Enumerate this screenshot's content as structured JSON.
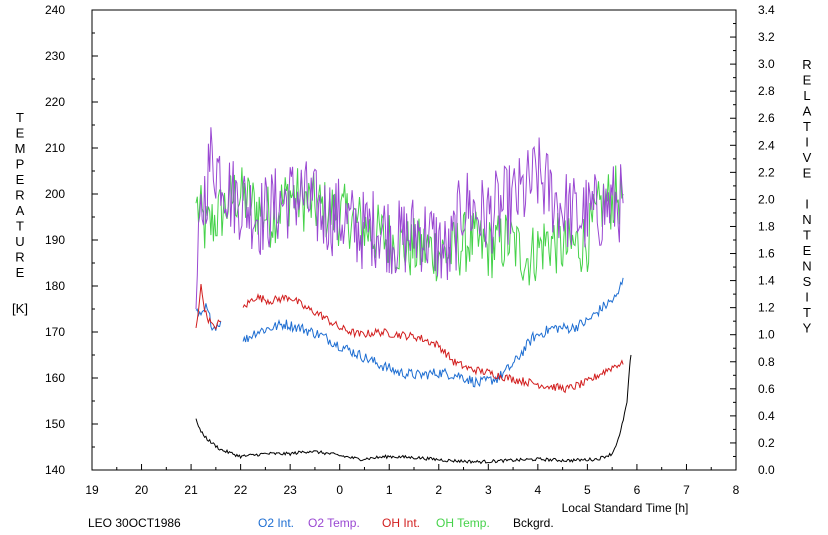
{
  "chart_data": {
    "type": "line",
    "title": "",
    "station_label": "LEO 30OCT1986",
    "xlabel": "Local Standard Time [h]",
    "ylabel_left": [
      "T",
      "E",
      "M",
      "P",
      "E",
      "R",
      "A",
      "T",
      "U",
      "R",
      "E"
    ],
    "ylabel_left_unit": "[K]",
    "ylabel_right": [
      "R",
      "E",
      "L",
      "A",
      "T",
      "I",
      "V",
      "E",
      "",
      "I",
      "N",
      "T",
      "E",
      "N",
      "S",
      "I",
      "T",
      "Y"
    ],
    "xlim": [
      19,
      32
    ],
    "x_tick_values": [
      19,
      20,
      21,
      22,
      23,
      24,
      25,
      26,
      27,
      28,
      29,
      30,
      31,
      32
    ],
    "x_tick_labels": [
      "19",
      "20",
      "21",
      "22",
      "23",
      "0",
      "1",
      "2",
      "3",
      "4",
      "5",
      "6",
      "7",
      "8"
    ],
    "ylim_left": [
      140,
      240
    ],
    "y_left_ticks": [
      "140",
      "150",
      "160",
      "170",
      "180",
      "190",
      "200",
      "210",
      "220",
      "230",
      "240"
    ],
    "ylim_right": [
      0,
      3.4
    ],
    "y_right_ticks": [
      "0.0",
      "0.2",
      "0.4",
      "0.6",
      "0.8",
      "1.0",
      "1.2",
      "1.4",
      "1.6",
      "1.8",
      "2.0",
      "2.2",
      "2.4",
      "2.6",
      "2.8",
      "3.0",
      "3.2",
      "3.4"
    ],
    "grid": false,
    "legend_position": "bottom",
    "series": [
      {
        "name": "O2 Int.",
        "axis": "right",
        "color": "#1e6ed2",
        "noise": 0.04,
        "points": [
          [
            21.1,
            1.18
          ],
          [
            21.2,
            1.12
          ],
          [
            21.3,
            1.2
          ],
          [
            21.45,
            1.05
          ],
          [
            21.6,
            1.1
          ],
          [
            null,
            null
          ],
          [
            22.05,
            0.95
          ],
          [
            22.3,
            1.02
          ],
          [
            22.6,
            1.05
          ],
          [
            22.9,
            1.08
          ],
          [
            23.2,
            1.05
          ],
          [
            23.6,
            1.0
          ],
          [
            24.0,
            0.92
          ],
          [
            24.4,
            0.85
          ],
          [
            24.8,
            0.78
          ],
          [
            25.2,
            0.72
          ],
          [
            25.6,
            0.7
          ],
          [
            26.0,
            0.72
          ],
          [
            26.4,
            0.7
          ],
          [
            26.8,
            0.64
          ],
          [
            27.2,
            0.68
          ],
          [
            27.5,
            0.78
          ],
          [
            27.9,
            0.98
          ],
          [
            28.3,
            1.05
          ],
          [
            28.7,
            1.05
          ],
          [
            29.0,
            1.1
          ],
          [
            29.3,
            1.2
          ],
          [
            29.6,
            1.28
          ],
          [
            29.72,
            1.42
          ]
        ]
      },
      {
        "name": "O2 Temp.",
        "axis": "left",
        "color": "#9a48d2",
        "noise": 9,
        "points": [
          [
            21.1,
            175
          ],
          [
            21.2,
            195
          ],
          [
            21.4,
            208
          ],
          [
            21.6,
            205
          ],
          [
            21.8,
            200
          ],
          [
            22.1,
            198
          ],
          [
            22.4,
            195
          ],
          [
            22.8,
            198
          ],
          [
            23.2,
            200
          ],
          [
            23.6,
            196
          ],
          [
            24.0,
            195
          ],
          [
            24.4,
            192
          ],
          [
            24.8,
            193
          ],
          [
            25.2,
            190
          ],
          [
            25.6,
            192
          ],
          [
            26.0,
            189
          ],
          [
            26.2,
            186
          ],
          [
            26.5,
            198
          ],
          [
            26.9,
            195
          ],
          [
            27.3,
            197
          ],
          [
            27.7,
            200
          ],
          [
            28.0,
            204
          ],
          [
            28.4,
            198
          ],
          [
            28.8,
            195
          ],
          [
            29.2,
            196
          ],
          [
            29.5,
            198
          ],
          [
            29.72,
            198
          ]
        ]
      },
      {
        "name": "OH Int.",
        "axis": "right",
        "color": "#d21e1e",
        "noise": 0.03,
        "points": [
          [
            21.1,
            1.05
          ],
          [
            21.2,
            1.35
          ],
          [
            21.3,
            1.15
          ],
          [
            21.45,
            1.05
          ],
          [
            21.6,
            1.1
          ],
          [
            null,
            null
          ],
          [
            22.05,
            1.2
          ],
          [
            22.3,
            1.28
          ],
          [
            22.6,
            1.25
          ],
          [
            23.0,
            1.28
          ],
          [
            23.3,
            1.2
          ],
          [
            23.6,
            1.15
          ],
          [
            24.0,
            1.05
          ],
          [
            24.4,
            1.0
          ],
          [
            24.8,
            1.02
          ],
          [
            25.2,
            1.0
          ],
          [
            25.6,
            0.98
          ],
          [
            26.0,
            0.92
          ],
          [
            26.3,
            0.8
          ],
          [
            26.6,
            0.75
          ],
          [
            27.0,
            0.72
          ],
          [
            27.4,
            0.68
          ],
          [
            27.8,
            0.65
          ],
          [
            28.2,
            0.62
          ],
          [
            28.6,
            0.6
          ],
          [
            29.0,
            0.65
          ],
          [
            29.3,
            0.72
          ],
          [
            29.6,
            0.78
          ],
          [
            29.72,
            0.78
          ]
        ]
      },
      {
        "name": "OH Temp.",
        "axis": "left",
        "color": "#46d24a",
        "noise": 7,
        "points": [
          [
            21.1,
            198
          ],
          [
            21.3,
            192
          ],
          [
            21.6,
            196
          ],
          [
            21.9,
            200
          ],
          [
            22.2,
            198
          ],
          [
            22.6,
            195
          ],
          [
            23.0,
            200
          ],
          [
            23.4,
            198
          ],
          [
            23.8,
            196
          ],
          [
            24.2,
            195
          ],
          [
            24.6,
            192
          ],
          [
            25.0,
            190
          ],
          [
            25.4,
            188
          ],
          [
            25.8,
            188
          ],
          [
            26.2,
            187
          ],
          [
            26.6,
            190
          ],
          [
            27.0,
            188
          ],
          [
            27.4,
            190
          ],
          [
            27.8,
            186
          ],
          [
            28.2,
            190
          ],
          [
            28.6,
            188
          ],
          [
            29.0,
            190
          ],
          [
            29.3,
            198
          ],
          [
            29.72,
            200
          ]
        ]
      },
      {
        "name": "Bckgrd.",
        "axis": "right",
        "color": "#000000",
        "noise": 0.012,
        "points": [
          [
            21.1,
            0.38
          ],
          [
            21.2,
            0.28
          ],
          [
            21.35,
            0.22
          ],
          [
            21.6,
            0.15
          ],
          [
            22.0,
            0.1
          ],
          [
            22.5,
            0.12
          ],
          [
            23.0,
            0.12
          ],
          [
            23.4,
            0.14
          ],
          [
            23.8,
            0.12
          ],
          [
            24.4,
            0.08
          ],
          [
            25.0,
            0.1
          ],
          [
            25.6,
            0.09
          ],
          [
            26.2,
            0.07
          ],
          [
            26.8,
            0.06
          ],
          [
            27.4,
            0.07
          ],
          [
            28.0,
            0.08
          ],
          [
            28.6,
            0.07
          ],
          [
            29.2,
            0.08
          ],
          [
            29.5,
            0.12
          ],
          [
            29.65,
            0.25
          ],
          [
            29.8,
            0.5
          ],
          [
            29.85,
            0.75
          ],
          [
            29.88,
            0.85
          ]
        ]
      }
    ]
  }
}
